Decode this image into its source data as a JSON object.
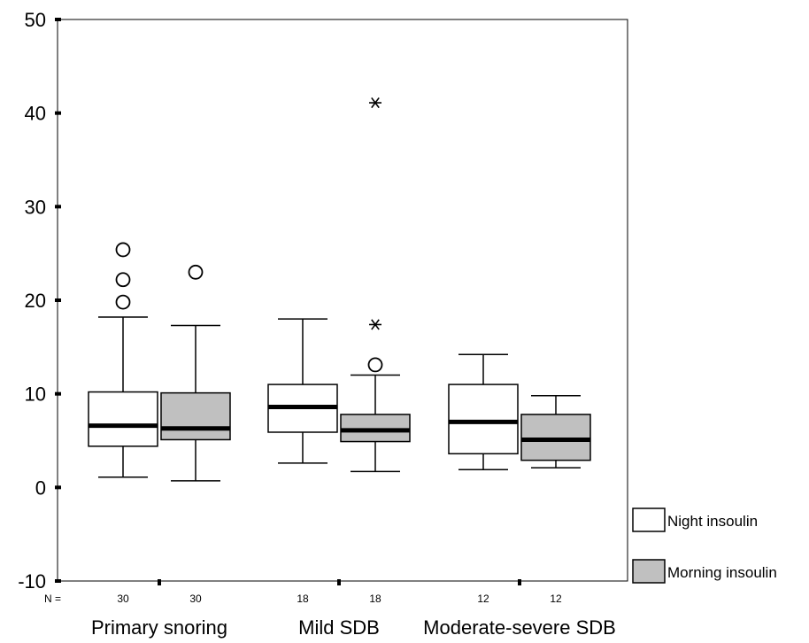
{
  "chart_data": {
    "type": "boxplot",
    "title": "",
    "xlabel": "",
    "ylabel": "",
    "ylim": [
      -10,
      50
    ],
    "yticks": [
      -10,
      0,
      10,
      20,
      30,
      40,
      50
    ],
    "ytick_labels": [
      "-10",
      "0",
      "10",
      "20",
      "30",
      "40",
      "50"
    ],
    "n_prefix": "N =",
    "groups": [
      "Primary snoring",
      "Mild SDB",
      "Moderate-severe SDB"
    ],
    "series": [
      {
        "name": "Night insoulin",
        "fill": "#ffffff",
        "boxes": [
          {
            "group": "Primary snoring",
            "n": "30",
            "whisker_low": 1.1,
            "q1": 4.4,
            "median": 6.6,
            "q3": 10.2,
            "whisker_high": 18.2,
            "outliers": [
              19.8,
              22.2,
              25.4
            ],
            "extremes": []
          },
          {
            "group": "Mild SDB",
            "n": "18",
            "whisker_low": 2.6,
            "q1": 5.9,
            "median": 8.6,
            "q3": 11.0,
            "whisker_high": 18.0,
            "outliers": [],
            "extremes": []
          },
          {
            "group": "Moderate-severe SDB",
            "n": "12",
            "whisker_low": 1.9,
            "q1": 3.6,
            "median": 7.0,
            "q3": 11.0,
            "whisker_high": 14.2,
            "outliers": [],
            "extremes": []
          }
        ]
      },
      {
        "name": "Morning insoulin",
        "fill": "#c0c0c0",
        "boxes": [
          {
            "group": "Primary snoring",
            "n": "30",
            "whisker_low": 0.7,
            "q1": 5.1,
            "median": 6.3,
            "q3": 10.1,
            "whisker_high": 17.3,
            "outliers": [
              23.0
            ],
            "extremes": []
          },
          {
            "group": "Mild SDB",
            "n": "18",
            "whisker_low": 1.7,
            "q1": 4.9,
            "median": 6.1,
            "q3": 7.8,
            "whisker_high": 12.0,
            "outliers": [
              13.1
            ],
            "extremes": [
              17.4,
              41.1
            ]
          },
          {
            "group": "Moderate-severe SDB",
            "n": "12",
            "whisker_low": 2.1,
            "q1": 2.9,
            "median": 5.1,
            "q3": 7.8,
            "whisker_high": 9.8,
            "outliers": [],
            "extremes": []
          }
        ]
      }
    ],
    "legend": {
      "placement": "right-bottom",
      "entries": [
        {
          "label": "Night insoulin",
          "color": "#ffffff"
        },
        {
          "label": "Morning insoulin",
          "color": "#c0c0c0"
        }
      ]
    },
    "grid": false
  }
}
